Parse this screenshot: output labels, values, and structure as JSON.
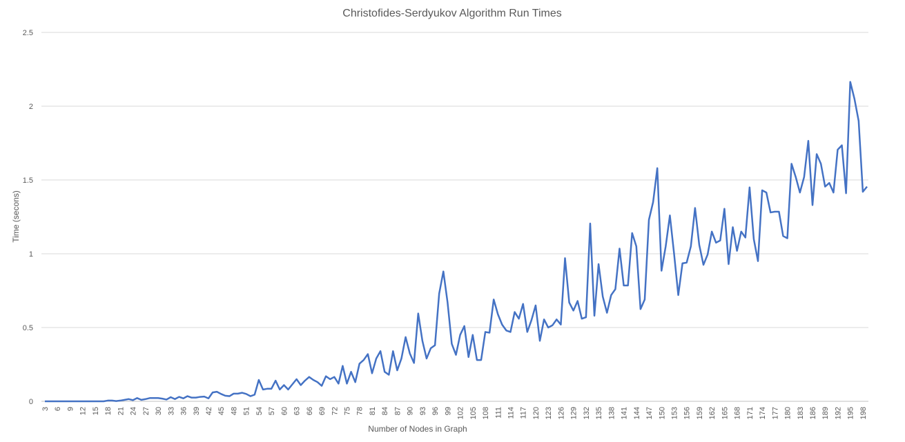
{
  "chart_data": {
    "type": "line",
    "title": "Christofides-Serdyukov Algorithm Run Times",
    "x_label": "Number of Nodes in Graph",
    "y_label": "Time (secons)",
    "categories": [
      3,
      null,
      null,
      6,
      null,
      null,
      9,
      null,
      null,
      12,
      null,
      null,
      15,
      null,
      null,
      18,
      null,
      null,
      21,
      null,
      null,
      24,
      null,
      null,
      27,
      null,
      null,
      30,
      null,
      null,
      33,
      null,
      null,
      36,
      null,
      null,
      39,
      null,
      null,
      42,
      null,
      null,
      45,
      null,
      null,
      48,
      null,
      null,
      51,
      null,
      null,
      54,
      null,
      null,
      57,
      null,
      null,
      60,
      null,
      null,
      63,
      null,
      null,
      66,
      null,
      null,
      69,
      null,
      null,
      72,
      null,
      null,
      75,
      null,
      null,
      78,
      null,
      null,
      81,
      null,
      null,
      84,
      null,
      null,
      87,
      null,
      null,
      90,
      null,
      null,
      93,
      null,
      null,
      96,
      null,
      null,
      99,
      null,
      null,
      102,
      null,
      null,
      105,
      null,
      null,
      108,
      null,
      null,
      111,
      null,
      null,
      114,
      null,
      null,
      117,
      null,
      null,
      120,
      null,
      null,
      123,
      null,
      null,
      126,
      null,
      null,
      129,
      null,
      null,
      132,
      null,
      null,
      135,
      null,
      null,
      138,
      null,
      null,
      141,
      null,
      null,
      144,
      null,
      null,
      147,
      null,
      null,
      150,
      null,
      null,
      153,
      null,
      null,
      156,
      null,
      null,
      159,
      null,
      null,
      162,
      null,
      null,
      165,
      null,
      null,
      168,
      null,
      null,
      171,
      null,
      null,
      174,
      null,
      null,
      177,
      null,
      null,
      180,
      null,
      null,
      183,
      null,
      null,
      186,
      null,
      null,
      189,
      null,
      null,
      192,
      null,
      null,
      195,
      null,
      null,
      198,
      null
    ],
    "series": [
      {
        "name": "Time",
        "color": "#4472c4",
        "values": [
          0,
          0,
          0,
          0,
          0,
          0,
          0,
          0,
          0,
          0,
          0,
          0,
          0,
          0,
          0,
          0.005,
          0.005,
          0.002,
          0.005,
          0.01,
          0.015,
          0.008,
          0.022,
          0.01,
          0.015,
          0.022,
          0.022,
          0.022,
          0.018,
          0.012,
          0.028,
          0.015,
          0.03,
          0.02,
          0.035,
          0.025,
          0.025,
          0.03,
          0.032,
          0.02,
          0.06,
          0.065,
          0.05,
          0.038,
          0.035,
          0.052,
          0.052,
          0.058,
          0.05,
          0.035,
          0.045,
          0.145,
          0.08,
          0.085,
          0.085,
          0.14,
          0.08,
          0.11,
          0.08,
          0.115,
          0.15,
          0.11,
          0.14,
          0.165,
          0.145,
          0.13,
          0.105,
          0.17,
          0.15,
          0.165,
          0.12,
          0.24,
          0.12,
          0.2,
          0.13,
          0.255,
          0.28,
          0.32,
          0.19,
          0.29,
          0.34,
          0.2,
          0.18,
          0.34,
          0.21,
          0.29,
          0.435,
          0.325,
          0.26,
          0.595,
          0.41,
          0.29,
          0.36,
          0.38,
          0.73,
          0.88,
          0.67,
          0.39,
          0.315,
          0.45,
          0.51,
          0.3,
          0.45,
          0.28,
          0.28,
          0.47,
          0.465,
          0.69,
          0.59,
          0.52,
          0.48,
          0.47,
          0.605,
          0.56,
          0.66,
          0.47,
          0.55,
          0.65,
          0.41,
          0.555,
          0.5,
          0.515,
          0.555,
          0.52,
          0.97,
          0.67,
          0.615,
          0.68,
          0.56,
          0.57,
          1.205,
          0.58,
          0.93,
          0.71,
          0.6,
          0.72,
          0.76,
          1.035,
          0.785,
          0.785,
          1.14,
          1.05,
          0.625,
          0.69,
          1.23,
          1.35,
          1.58,
          0.885,
          1.05,
          1.26,
          1.0,
          0.72,
          0.935,
          0.94,
          1.05,
          1.31,
          1.06,
          0.925,
          0.995,
          1.15,
          1.075,
          1.09,
          1.305,
          0.93,
          1.18,
          1.02,
          1.15,
          1.11,
          1.45,
          1.1,
          0.95,
          1.43,
          1.415,
          1.28,
          1.285,
          1.285,
          1.12,
          1.105,
          1.61,
          1.52,
          1.415,
          1.52,
          1.765,
          1.33,
          1.675,
          1.61,
          1.455,
          1.48,
          1.415,
          1.705,
          1.735,
          1.41,
          2.165,
          2.05,
          1.9,
          1.42,
          1.455
        ]
      }
    ],
    "ylim": [
      0,
      2.5
    ],
    "yticks": [
      0,
      0.5,
      1,
      1.5,
      2,
      2.5
    ],
    "grid": true
  }
}
